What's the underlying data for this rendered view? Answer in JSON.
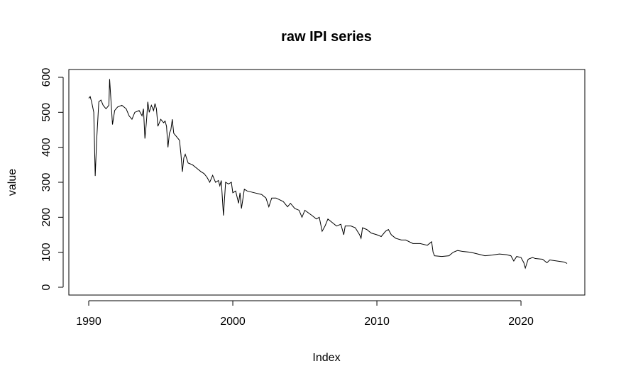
{
  "chart_data": {
    "type": "line",
    "title": "raw IPI series",
    "x_label": "Index",
    "y_label": "value",
    "color": "#000000",
    "x": [
      1990.0,
      1990.1,
      1990.2,
      1990.35,
      1990.45,
      1990.55,
      1990.7,
      1990.85,
      1991.0,
      1991.2,
      1991.4,
      1991.45,
      1991.55,
      1991.65,
      1991.8,
      1992.0,
      1992.3,
      1992.6,
      1992.8,
      1993.0,
      1993.2,
      1993.5,
      1993.7,
      1993.8,
      1993.9,
      1994.0,
      1994.1,
      1994.2,
      1994.35,
      1994.5,
      1994.6,
      1994.7,
      1994.8,
      1995.0,
      1995.2,
      1995.3,
      1995.4,
      1995.5,
      1995.6,
      1995.7,
      1995.8,
      1995.9,
      1996.1,
      1996.3,
      1996.4,
      1996.5,
      1996.6,
      1996.7,
      1996.9,
      1997.2,
      1997.5,
      1997.8,
      1998.0,
      1998.2,
      1998.4,
      1998.6,
      1998.8,
      1999.0,
      1999.1,
      1999.2,
      1999.35,
      1999.5,
      1999.7,
      1999.9,
      2000.0,
      2000.2,
      2000.4,
      2000.5,
      2000.6,
      2000.8,
      2001.0,
      2001.5,
      2002.0,
      2002.3,
      2002.5,
      2002.7,
      2003.0,
      2003.5,
      2003.8,
      2004.0,
      2004.3,
      2004.6,
      2004.8,
      2005.0,
      2005.5,
      2005.8,
      2006.0,
      2006.2,
      2006.4,
      2006.6,
      2006.9,
      2007.2,
      2007.5,
      2007.7,
      2007.8,
      2008.2,
      2008.5,
      2008.8,
      2008.9,
      2009.0,
      2009.3,
      2009.6,
      2010.0,
      2010.3,
      2010.6,
      2010.8,
      2011.0,
      2011.3,
      2011.7,
      2012.0,
      2012.5,
      2013.0,
      2013.5,
      2013.8,
      2013.9,
      2014.0,
      2014.5,
      2015.0,
      2015.3,
      2015.6,
      2016.0,
      2016.5,
      2017.0,
      2017.5,
      2018.0,
      2018.5,
      2019.0,
      2019.3,
      2019.5,
      2019.7,
      2020.0,
      2020.2,
      2020.3,
      2020.5,
      2020.8,
      2021.0,
      2021.5,
      2021.8,
      2022.0,
      2022.5,
      2023.0,
      2023.2
    ],
    "values": [
      540,
      545,
      530,
      500,
      318,
      420,
      530,
      535,
      520,
      510,
      520,
      595,
      530,
      465,
      505,
      515,
      520,
      510,
      490,
      480,
      500,
      505,
      490,
      510,
      425,
      470,
      530,
      500,
      520,
      505,
      525,
      510,
      460,
      480,
      470,
      475,
      460,
      400,
      440,
      450,
      480,
      440,
      430,
      420,
      380,
      330,
      370,
      380,
      355,
      350,
      340,
      330,
      325,
      315,
      300,
      320,
      300,
      305,
      290,
      305,
      205,
      300,
      295,
      300,
      270,
      275,
      240,
      270,
      225,
      280,
      275,
      270,
      265,
      255,
      230,
      255,
      255,
      245,
      230,
      240,
      225,
      220,
      200,
      220,
      205,
      195,
      200,
      160,
      175,
      195,
      185,
      175,
      180,
      150,
      175,
      175,
      170,
      150,
      140,
      170,
      165,
      155,
      150,
      145,
      160,
      165,
      150,
      140,
      135,
      135,
      125,
      125,
      120,
      130,
      100,
      90,
      88,
      90,
      100,
      105,
      102,
      100,
      95,
      90,
      92,
      95,
      93,
      90,
      75,
      88,
      85,
      70,
      55,
      80,
      85,
      82,
      80,
      70,
      78,
      75,
      72,
      68
    ],
    "xlim": [
      1988.62,
      2024.43
    ],
    "ylim": [
      -22.3,
      622.3
    ],
    "xticks": [
      1990,
      2000,
      2010,
      2020
    ],
    "yticks": [
      0,
      100,
      200,
      300,
      400,
      500,
      600
    ]
  }
}
